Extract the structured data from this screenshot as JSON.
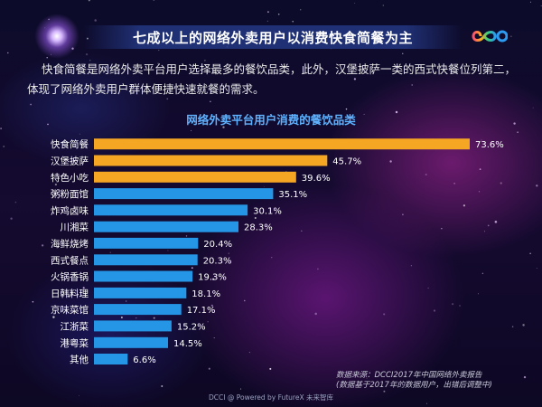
{
  "header": {
    "title": "七成以上的网络外卖用户以消费快食简餐为主",
    "description": "快食简餐是网络外卖平台用户选择最多的餐饮品类，此外，汉堡披萨一类的西式快餐位列第二，体现了网络外卖用户群体便捷快速就餐的需求。"
  },
  "chart_data": {
    "type": "bar",
    "orientation": "horizontal",
    "title": "网络外卖平台用户消费的餐饮品类",
    "categories": [
      "快食简餐",
      "汉堡披萨",
      "特色小吃",
      "粥粉面馆",
      "炸鸡卤味",
      "川湘菜",
      "海鲜烧烤",
      "西式餐点",
      "火锅香锅",
      "日韩料理",
      "京味菜馆",
      "江浙菜",
      "港粤菜",
      "其他"
    ],
    "values": [
      73.6,
      45.7,
      39.6,
      35.1,
      30.1,
      28.3,
      20.4,
      20.3,
      19.3,
      18.1,
      17.1,
      15.2,
      14.5,
      6.6
    ],
    "value_labels": [
      "73.6%",
      "45.7%",
      "39.6%",
      "35.1%",
      "30.1%",
      "28.3%",
      "20.4%",
      "20.3%",
      "19.3%",
      "18.1%",
      "17.1%",
      "15.2%",
      "14.5%",
      "6.6%"
    ],
    "unit": "%",
    "xlim": [
      0,
      80
    ],
    "highlighted_count": 3,
    "colors": {
      "highlight": "#f5a623",
      "normal": "#2596e6",
      "label": "#ffffff"
    },
    "grid": false,
    "legend": "none"
  },
  "footer": {
    "source_lines": [
      "数据来源：DCCI2017年中国网络外卖报告",
      "(数据基于2017年的数据用户，出错后调整中)"
    ],
    "credit": "DCCI @  Powered by FutureX 未来智库"
  },
  "colors": {
    "title_bar": "#23378a",
    "chart_title": "#5fb2ff"
  }
}
